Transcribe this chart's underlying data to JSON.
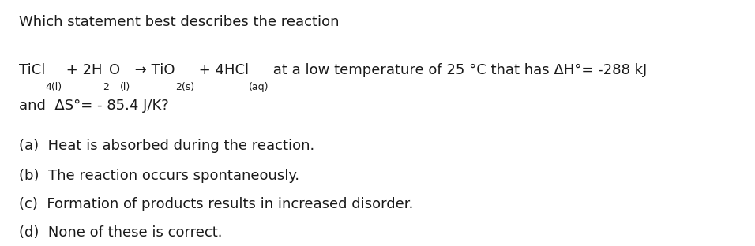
{
  "bg_color": "#ffffff",
  "text_color": "#1a1a1a",
  "title_line": "Which statement best describes the reaction",
  "answer_a": "(a)  Heat is absorbed during the reaction.",
  "answer_b": "(b)  The reaction occurs spontaneously.",
  "answer_c": "(c)  Formation of products results in increased disorder.",
  "answer_d": "(d)  None of these is correct.",
  "font_size_main": 13.0,
  "font_size_sub": 9.0,
  "font_size_answers": 13.0,
  "fig_width": 9.56,
  "fig_height": 3.12,
  "dpi": 100
}
